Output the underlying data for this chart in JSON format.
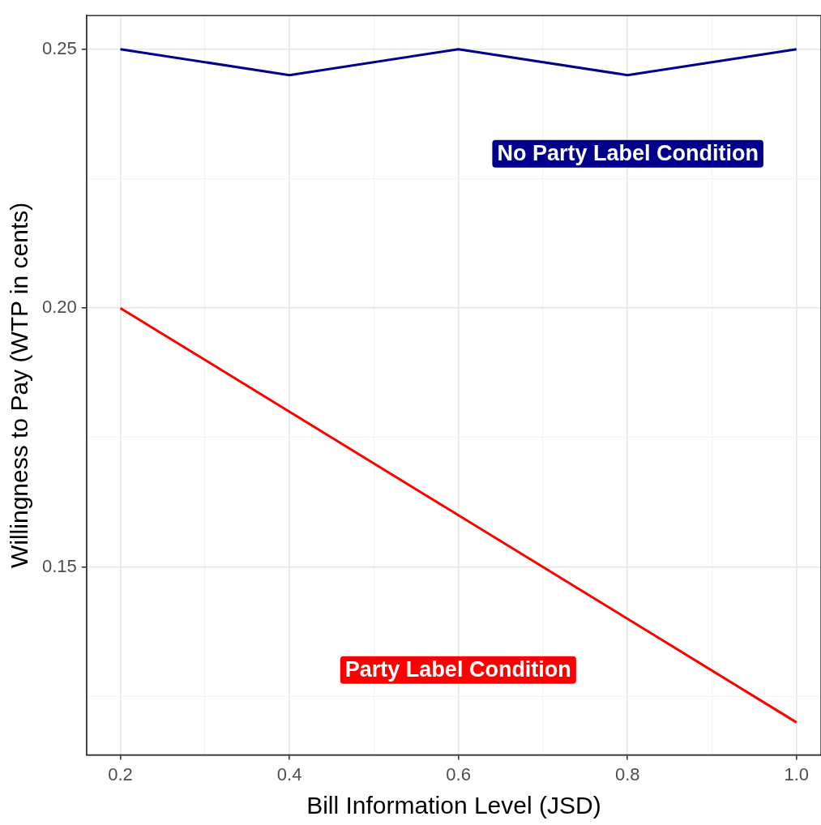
{
  "chart_data": {
    "type": "line",
    "xlabel": "Bill Information Level (JSD)",
    "ylabel": "Willingness to Pay (WTP in cents)",
    "x": [
      0.2,
      0.4,
      0.6,
      0.8,
      1.0
    ],
    "series": [
      {
        "color": "#00008b",
        "values": [
          0.25,
          0.245,
          0.25,
          0.245,
          0.25
        ]
      },
      {
        "color": "#ff0000",
        "values": [
          0.2,
          0.18,
          0.16,
          0.14,
          0.12
        ]
      }
    ],
    "annotations": [
      "No Party Label Condition",
      "Party Label Condition"
    ],
    "xlim": [
      0.16,
      1.029
    ],
    "ylim": [
      0.1137,
      0.2565
    ],
    "xticks": [
      {
        "value": 0.2,
        "label": "0.2"
      },
      {
        "value": 0.3,
        "label": null
      },
      {
        "value": 0.4,
        "label": "0.4"
      },
      {
        "value": 0.5,
        "label": null
      },
      {
        "value": 0.6,
        "label": "0.6"
      },
      {
        "value": 0.7,
        "label": null
      },
      {
        "value": 0.8,
        "label": "0.8"
      },
      {
        "value": 0.9,
        "label": null
      },
      {
        "value": 1.0,
        "label": "1.0"
      }
    ],
    "yticks": [
      {
        "value": 0.125,
        "label": null
      },
      {
        "value": 0.15,
        "label": "0.15"
      },
      {
        "value": 0.175,
        "label": null
      },
      {
        "value": 0.2,
        "label": "0.20"
      },
      {
        "value": 0.225,
        "label": null
      },
      {
        "value": 0.25,
        "label": "0.25"
      }
    ],
    "grid": true,
    "legend": false,
    "marker": "none",
    "line_style": "solid"
  }
}
